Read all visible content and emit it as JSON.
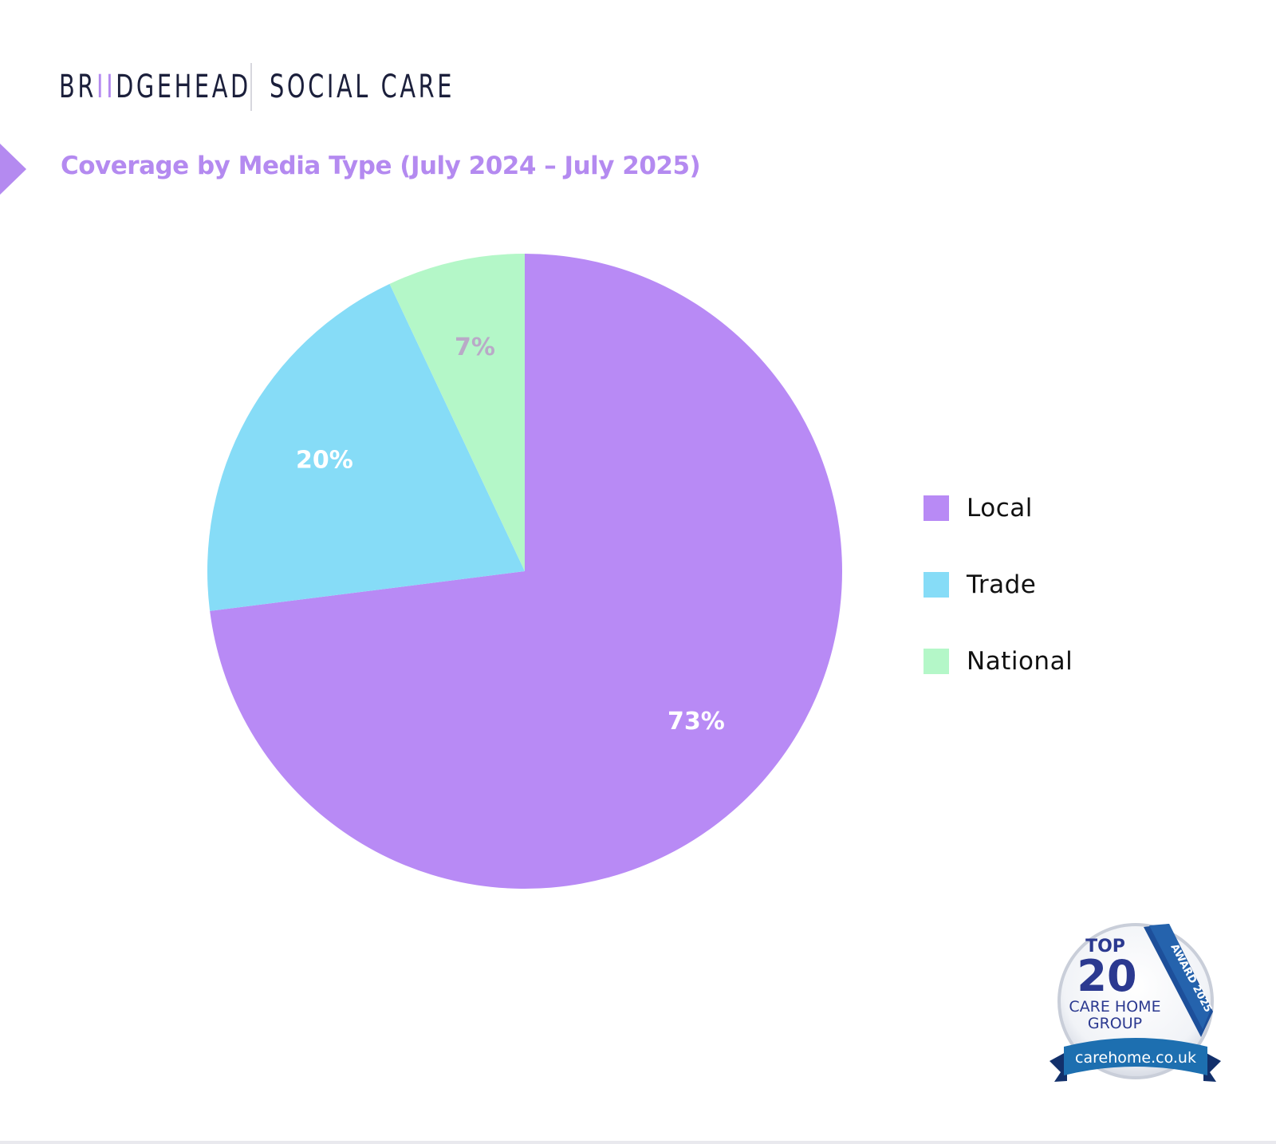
{
  "brand": {
    "left_pre": "BR",
    "left_accent": "II",
    "left_post": "DGEHEAD",
    "right": "SOCIAL CARE"
  },
  "chart_data": {
    "type": "pie",
    "title": "Coverage by Media Type (July 2024 – July 2025)",
    "categories": [
      "Local",
      "Trade",
      "National"
    ],
    "values": [
      73,
      20,
      7
    ],
    "labels": [
      "73%",
      "20%",
      "7%"
    ],
    "colors": [
      "#b88af5",
      "#86dcf7",
      "#b4f7c8"
    ],
    "label_colors": [
      "#ffffff",
      "#ffffff",
      "#b9a9c7"
    ],
    "start_angle_deg": 0,
    "direction": "clockwise",
    "legend": "right"
  },
  "award": {
    "top": "TOP",
    "number": "20",
    "line1": "CARE HOME",
    "line2": "GROUP",
    "ribbon": "AWARD 2025",
    "site": "carehome.co.uk"
  },
  "colors": {
    "accent": "#b48af0",
    "brand_text": "#1b1f3b",
    "award_navy": "#2b3990",
    "award_blue": "#1d6fb0"
  }
}
